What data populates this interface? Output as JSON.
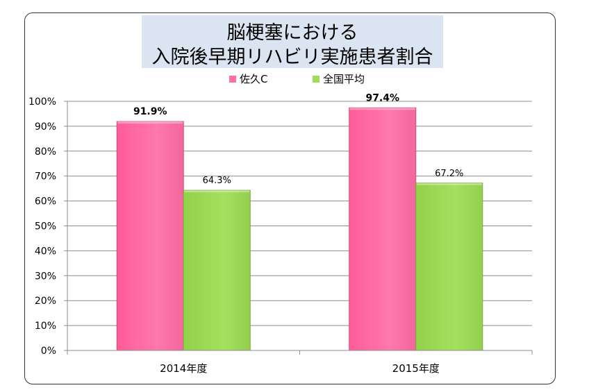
{
  "colors": {
    "series_1": "#ff6fa5",
    "series_2": "#9fdc58",
    "title_background": "#dbe5f1",
    "grid": "#8c8c8c"
  },
  "chart_data": {
    "type": "bar",
    "title": [
      "脳梗塞における",
      "入院後早期リハビリ実施患者割合"
    ],
    "categories": [
      "2014年度",
      "2015年度"
    ],
    "series": [
      {
        "name": "佐久C",
        "values": [
          91.9,
          97.4
        ],
        "labels": [
          "91.9%",
          "97.4%"
        ]
      },
      {
        "name": "全国平均",
        "values": [
          64.3,
          67.2
        ],
        "labels": [
          "64.3%",
          "67.2%"
        ]
      }
    ],
    "ylim": [
      0,
      100
    ],
    "yticks": [
      "0%",
      "10%",
      "20%",
      "30%",
      "40%",
      "50%",
      "60%",
      "70%",
      "80%",
      "90%",
      "100%"
    ],
    "xlabel": "",
    "ylabel": "",
    "grid": true,
    "legend_position": "top"
  }
}
